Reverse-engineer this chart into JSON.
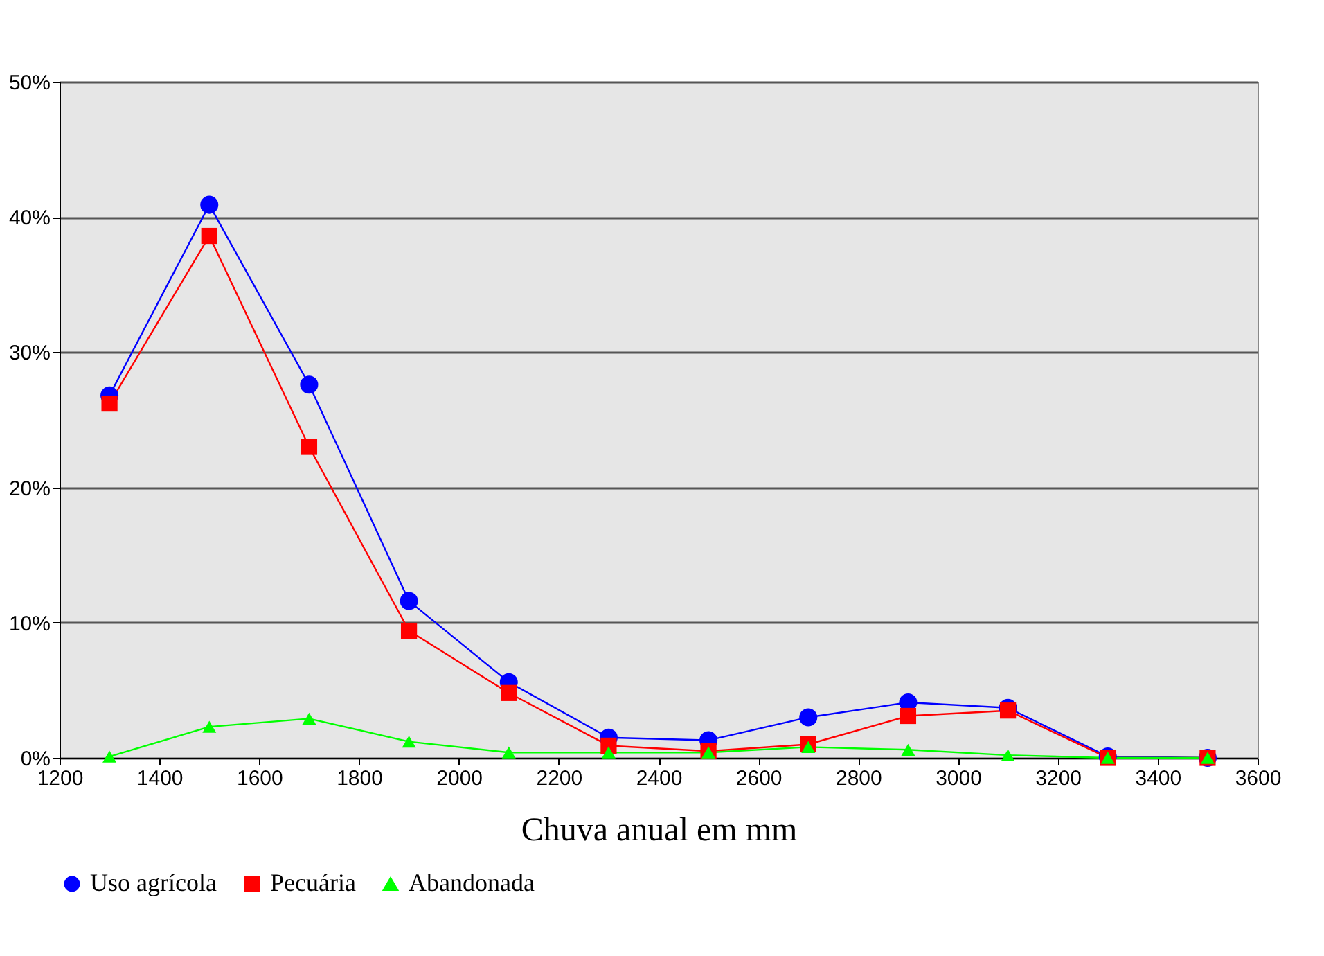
{
  "chart_data": {
    "type": "line",
    "xlabel": "Chuva anual em mm",
    "x": [
      1300,
      1500,
      1700,
      1900,
      2100,
      2300,
      2500,
      2700,
      2900,
      3100,
      3300,
      3500
    ],
    "series": [
      {
        "name": "Uso agrícola",
        "color": "#0000ff",
        "marker": "circle",
        "values": [
          26.8,
          40.9,
          27.6,
          11.6,
          5.6,
          1.5,
          1.3,
          3.0,
          4.1,
          3.7,
          0.1,
          0
        ]
      },
      {
        "name": "Pecuária",
        "color": "#ff0000",
        "marker": "square",
        "values": [
          26.2,
          38.6,
          23.0,
          9.4,
          4.8,
          0.9,
          0.5,
          1.0,
          3.1,
          3.5,
          0,
          0
        ]
      },
      {
        "name": "Abandonada",
        "color": "#00ff00",
        "marker": "triangle",
        "values": [
          0.1,
          2.3,
          2.9,
          1.2,
          0.4,
          0.4,
          0.4,
          0.8,
          0.6,
          0.2,
          0,
          0
        ]
      }
    ],
    "xlim": [
      1200,
      3600
    ],
    "xticks": [
      1200,
      1400,
      1600,
      1800,
      2000,
      2200,
      2400,
      2600,
      2800,
      3000,
      3200,
      3400,
      3600
    ],
    "ylim": [
      0,
      50
    ],
    "yticks": [
      {
        "value": 0,
        "label": "0%"
      },
      {
        "value": 10,
        "label": "10%"
      },
      {
        "value": 20,
        "label": "20%"
      },
      {
        "value": 30,
        "label": "30%"
      },
      {
        "value": 40,
        "label": "40%"
      },
      {
        "value": 50,
        "label": "50%"
      }
    ],
    "grid": "y",
    "legend": "bottom",
    "line_style": "solid"
  }
}
